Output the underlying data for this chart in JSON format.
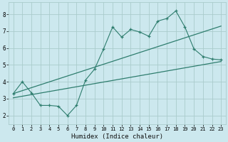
{
  "xlabel": "Humidex (Indice chaleur)",
  "bg_color": "#cce8ee",
  "grid_color": "#aacccc",
  "line_color": "#2e7d6e",
  "xlim": [
    -0.5,
    23.5
  ],
  "ylim": [
    1.5,
    8.7
  ],
  "xticks": [
    0,
    1,
    2,
    3,
    4,
    5,
    6,
    7,
    8,
    9,
    10,
    11,
    12,
    13,
    14,
    15,
    16,
    17,
    18,
    19,
    20,
    21,
    22,
    23
  ],
  "yticks": [
    2,
    3,
    4,
    5,
    6,
    7,
    8
  ],
  "line1_x": [
    0,
    1,
    2,
    3,
    4,
    5,
    6,
    7,
    8,
    9,
    10,
    11,
    12,
    13,
    14,
    15,
    16,
    17,
    18,
    19,
    20,
    21,
    22,
    23
  ],
  "line1_y": [
    3.3,
    4.0,
    3.35,
    2.6,
    2.6,
    2.55,
    2.0,
    2.6,
    4.1,
    4.75,
    5.95,
    7.25,
    6.65,
    7.1,
    6.95,
    6.7,
    7.6,
    7.75,
    8.2,
    7.25,
    5.95,
    5.5,
    5.35,
    5.3
  ],
  "line2_x": [
    0,
    23
  ],
  "line2_y": [
    3.3,
    7.3
  ],
  "line3_x": [
    0,
    23
  ],
  "line3_y": [
    3.05,
    5.2
  ],
  "xlabel_fontsize": 6.5,
  "tick_fontsize": 5,
  "xlabel_font": "monospace"
}
